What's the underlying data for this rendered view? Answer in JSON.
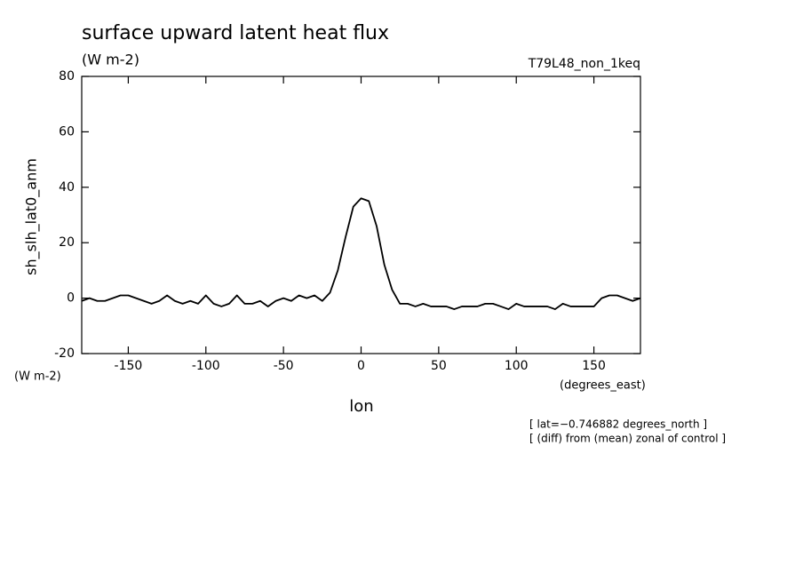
{
  "chart_data": {
    "type": "line",
    "title": "surface upward latent heat flux",
    "subtitle": "(W m-2)",
    "run_label": "T79L48_non_1keq",
    "ylabel": "sh_slh_lat0_anm",
    "yunits": "(W m-2)",
    "xlabel": "lon",
    "xunits": "(degrees_east)",
    "notes": [
      "[ lat=−0.746882 degrees_north ]",
      "[ (diff) from (mean) zonal of control ]"
    ],
    "x": [
      -180,
      -175,
      -170,
      -165,
      -160,
      -155,
      -150,
      -145,
      -140,
      -135,
      -130,
      -125,
      -120,
      -115,
      -110,
      -105,
      -100,
      -95,
      -90,
      -85,
      -80,
      -75,
      -70,
      -65,
      -60,
      -55,
      -50,
      -45,
      -40,
      -35,
      -30,
      -25,
      -20,
      -15,
      -10,
      -5,
      0,
      5,
      10,
      15,
      20,
      25,
      30,
      35,
      40,
      45,
      50,
      55,
      60,
      65,
      70,
      75,
      80,
      85,
      90,
      95,
      100,
      105,
      110,
      115,
      120,
      125,
      130,
      135,
      140,
      145,
      150,
      155,
      160,
      165,
      170,
      175,
      180
    ],
    "series": [
      {
        "name": "sh_slh_lat0_anm",
        "color": "#000000",
        "values": [
          -1,
          0,
          -1,
          -1,
          0,
          1,
          1,
          0,
          -1,
          -2,
          -1,
          1,
          -1,
          -2,
          -1,
          -2,
          1,
          -2,
          -3,
          -2,
          1,
          -2,
          -2,
          -1,
          -3,
          -1,
          0,
          -1,
          1,
          0,
          1,
          -1,
          2,
          10,
          22,
          33,
          36,
          35,
          26,
          12,
          3,
          -2,
          -2,
          -3,
          -2,
          -3,
          -3,
          -3,
          -4,
          -3,
          -3,
          -3,
          -2,
          -2,
          -3,
          -4,
          -2,
          -3,
          -3,
          -3,
          -3,
          -4,
          -2,
          -3,
          -3,
          -3,
          -3,
          0,
          1,
          1,
          0,
          -1,
          0
        ]
      }
    ],
    "xlim": [
      -180,
      180
    ],
    "xticks": [
      -150,
      -100,
      -50,
      0,
      50,
      100,
      150
    ],
    "ylim": [
      -20,
      80
    ],
    "yticks": [
      -20,
      0,
      20,
      40,
      60,
      80
    ]
  }
}
